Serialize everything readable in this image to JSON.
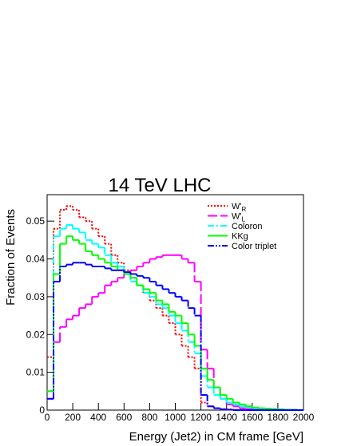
{
  "chart_data": {
    "type": "histogram",
    "title": "14 TeV LHC",
    "x_label": "Energy (Jet2) in CM frame [GeV]",
    "y_label": "Fraction of Events",
    "bins": [
      0,
      50,
      100,
      150,
      200,
      250,
      300,
      350,
      400,
      450,
      500,
      550,
      600,
      650,
      700,
      750,
      800,
      850,
      900,
      950,
      1000,
      1050,
      1100,
      1150,
      1200,
      1250,
      1300,
      1350,
      1400,
      1450,
      1500,
      1550,
      1600,
      1650,
      1700,
      1750,
      1800,
      1850,
      1900,
      1950,
      2000
    ],
    "xlim": [
      0,
      2000
    ],
    "xticks": [
      0,
      200,
      400,
      600,
      800,
      1000,
      1200,
      1400,
      1600,
      1800,
      2000
    ],
    "ylim": [
      0,
      0.057
    ],
    "yticks": [
      0,
      0.01,
      0.02,
      0.03,
      0.04,
      0.05
    ],
    "legend": "upper right",
    "series": [
      {
        "name": "W'",
        "subscript": "R",
        "color": "#ff0000",
        "linestyle": "dotted",
        "values": [
          0.014,
          0.048,
          0.053,
          0.054,
          0.053,
          0.051,
          0.05,
          0.048,
          0.046,
          0.044,
          0.041,
          0.039,
          0.037,
          0.035,
          0.033,
          0.031,
          0.029,
          0.027,
          0.025,
          0.023,
          0.02,
          0.017,
          0.014,
          0.011,
          0.002,
          0.001,
          0.0005,
          0.0003,
          0.0002,
          0.0001,
          0.0001,
          0,
          0,
          0,
          0,
          0,
          0,
          0,
          0,
          0
        ]
      },
      {
        "name": "W'",
        "subscript": "L",
        "color": "#ff00ff",
        "linestyle": "longdash",
        "values": [
          0.003,
          0.018,
          0.022,
          0.024,
          0.025,
          0.027,
          0.028,
          0.03,
          0.031,
          0.033,
          0.034,
          0.035,
          0.036,
          0.037,
          0.038,
          0.039,
          0.04,
          0.0405,
          0.041,
          0.041,
          0.041,
          0.04,
          0.039,
          0.034,
          0.016,
          0.011,
          0.006,
          0.003,
          0.0015,
          0.001,
          0.0005,
          0.0003,
          0.0002,
          0.0001,
          0.0001,
          0,
          0,
          0,
          0,
          0
        ]
      },
      {
        "name": "Coloron",
        "color": "#00ffff",
        "linestyle": "dashdot",
        "values": [
          0.005,
          0.046,
          0.048,
          0.049,
          0.048,
          0.047,
          0.045,
          0.044,
          0.043,
          0.041,
          0.039,
          0.038,
          0.036,
          0.034,
          0.033,
          0.031,
          0.03,
          0.028,
          0.027,
          0.025,
          0.023,
          0.021,
          0.018,
          0.015,
          0.009,
          0.006,
          0.004,
          0.003,
          0.002,
          0.0015,
          0.001,
          0.0008,
          0.0005,
          0.0004,
          0.0003,
          0.0002,
          0.0001,
          0.0001,
          0.0001,
          0
        ]
      },
      {
        "name": "KKg",
        "color": "#00ff00",
        "linestyle": "solid",
        "values": [
          0.005,
          0.036,
          0.044,
          0.046,
          0.045,
          0.044,
          0.042,
          0.041,
          0.04,
          0.039,
          0.038,
          0.037,
          0.036,
          0.035,
          0.033,
          0.032,
          0.031,
          0.029,
          0.028,
          0.026,
          0.025,
          0.023,
          0.02,
          0.017,
          0.011,
          0.008,
          0.006,
          0.004,
          0.003,
          0.002,
          0.0015,
          0.001,
          0.0007,
          0.0005,
          0.0004,
          0.0003,
          0.0002,
          0.0001,
          0.0001,
          0
        ]
      },
      {
        "name": "Color triplet",
        "color": "#0000ff",
        "linestyle": "dashdotdot",
        "values": [
          0.003,
          0.034,
          0.038,
          0.0385,
          0.039,
          0.039,
          0.0385,
          0.038,
          0.038,
          0.0375,
          0.037,
          0.037,
          0.0365,
          0.036,
          0.0355,
          0.035,
          0.034,
          0.033,
          0.032,
          0.031,
          0.03,
          0.029,
          0.027,
          0.025,
          0.004,
          0.001,
          0.0005,
          0.0002,
          0.0001,
          0,
          0,
          0,
          0,
          0,
          0,
          0,
          0,
          0,
          0,
          0
        ]
      }
    ]
  }
}
